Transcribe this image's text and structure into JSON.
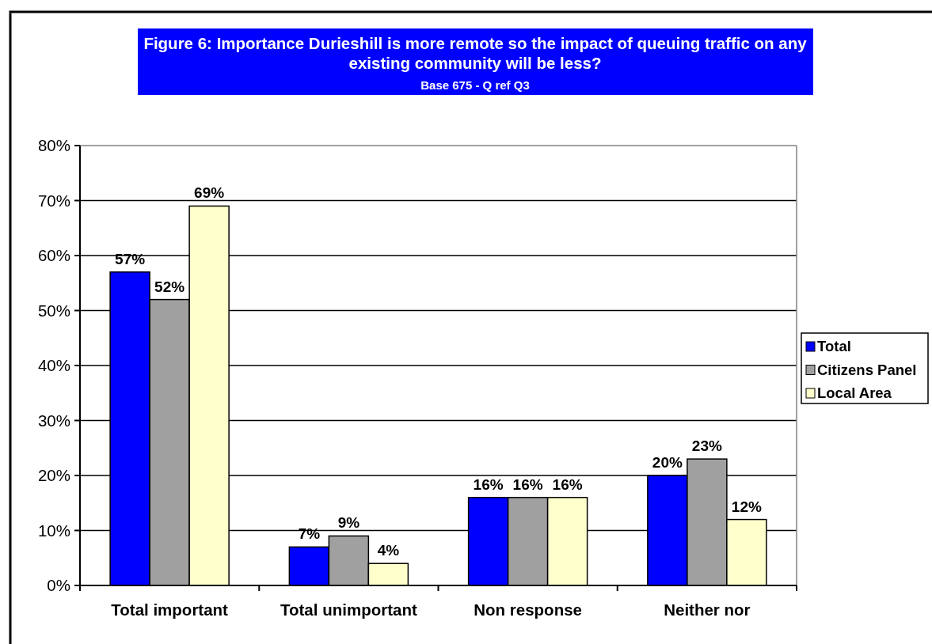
{
  "chart_data": {
    "type": "bar",
    "title": "Figure 6: Importance Durieshill is more remote so the impact of queuing traffic on any existing community will be less?",
    "subtitle": "Base 675 - Q ref Q3",
    "categories": [
      "Total important",
      "Total unimportant",
      "Non response",
      "Neither nor"
    ],
    "series": [
      {
        "name": "Total",
        "color": "#0000ff",
        "values": [
          57,
          7,
          16,
          20
        ],
        "value_labels": [
          "57%",
          "7%",
          "16%",
          "20%"
        ]
      },
      {
        "name": "Citizens Panel",
        "color": "#a0a0a0",
        "values": [
          52,
          9,
          16,
          23
        ],
        "value_labels": [
          "52%",
          "9%",
          "16%",
          "23%"
        ]
      },
      {
        "name": "Local Area",
        "color": "#ffffcc",
        "values": [
          69,
          4,
          16,
          12
        ],
        "value_labels": [
          "69%",
          "4%",
          "16%",
          "12%"
        ]
      }
    ],
    "ylim": [
      0,
      80
    ],
    "yticks": [
      {
        "value": 0,
        "label": "0%"
      },
      {
        "value": 10,
        "label": "10%"
      },
      {
        "value": 20,
        "label": "20%"
      },
      {
        "value": 30,
        "label": "30%"
      },
      {
        "value": 40,
        "label": "40%"
      },
      {
        "value": 50,
        "label": "50%"
      },
      {
        "value": 60,
        "label": "60%"
      },
      {
        "value": 70,
        "label": "70%"
      },
      {
        "value": 80,
        "label": "80%"
      }
    ],
    "grid": "y",
    "legend": "right"
  }
}
